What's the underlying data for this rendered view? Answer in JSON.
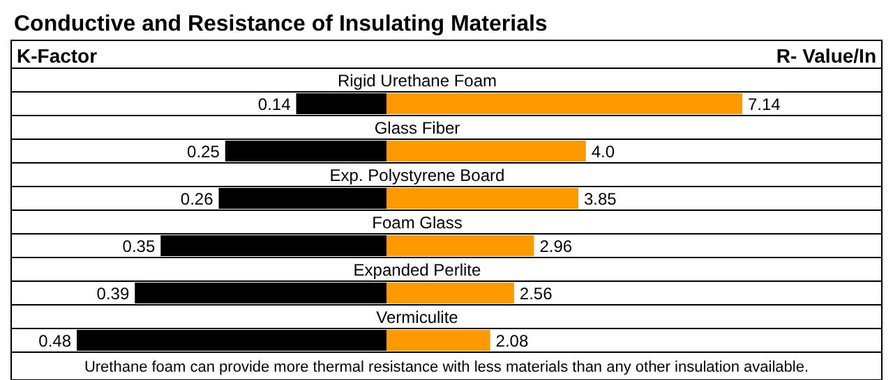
{
  "chart_data": [
    {
      "type": "bar",
      "orientation": "horizontal",
      "title": "Conductive and Resistance of Insulating Materials",
      "xlabel": "K-Factor",
      "categories": [
        "Rigid Urethane Foam",
        "Glass Fiber",
        "Exp. Polystyrene Board",
        "Foam Glass",
        "Expanded Perlite",
        "Vermiculite"
      ],
      "values": [
        0.14,
        0.25,
        0.26,
        0.35,
        0.39,
        0.48
      ],
      "color": "#000000",
      "data_labels": true,
      "annotations": [
        "Urethane foam can provide more thermal resistance with less materials than any other insulation available."
      ]
    },
    {
      "type": "bar",
      "orientation": "horizontal",
      "xlabel": "R- Value/In",
      "categories": [
        null,
        null,
        null,
        null,
        null,
        null
      ],
      "values": [
        7.14,
        4.0,
        3.85,
        2.96,
        2.56,
        2.08
      ],
      "color": "#ff9900",
      "value_labels": [
        "7.14",
        "4.0",
        "3.85",
        "2.96",
        "2.56",
        "2.08"
      ]
    }
  ]
}
